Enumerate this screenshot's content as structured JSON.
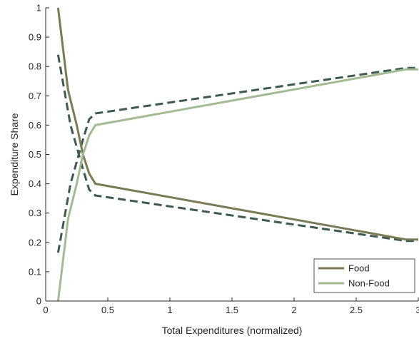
{
  "chart_data": {
    "type": "line",
    "xlabel": "Total Expenditures (normalized)",
    "ylabel": "Expenditure Share",
    "xlim": [
      0,
      3
    ],
    "ylim": [
      0,
      1
    ],
    "xticks": [
      0,
      0.5,
      1,
      1.5,
      2,
      2.5,
      3
    ],
    "xtick_labels": [
      "0",
      "0.5",
      "1",
      "1.5",
      "2",
      "2.5",
      "3"
    ],
    "yticks": [
      0,
      0.1,
      0.2,
      0.3,
      0.4,
      0.5,
      0.6,
      0.7,
      0.8,
      0.9,
      1
    ],
    "ytick_labels": [
      "0",
      "0.1",
      "0.2",
      "0.3",
      "0.4",
      "0.5",
      "0.6",
      "0.7",
      "0.8",
      "0.9",
      "1"
    ],
    "grid": false,
    "legend": {
      "placement": "bottom-right",
      "entries": [
        "Food",
        "Non-Food"
      ]
    },
    "series": [
      {
        "name": "Food",
        "color": "#7a7a55",
        "style": "solid",
        "x": [
          0.1,
          0.18,
          0.25,
          0.3,
          0.35,
          0.4,
          2.9,
          3.0
        ],
        "y": [
          1.0,
          0.72,
          0.6,
          0.5,
          0.435,
          0.4,
          0.21,
          0.21
        ]
      },
      {
        "name": "Non-Food",
        "color": "#a3bb93",
        "style": "solid",
        "x": [
          0.1,
          0.18,
          0.25,
          0.3,
          0.35,
          0.4,
          2.9,
          3.0
        ],
        "y": [
          0.0,
          0.28,
          0.4,
          0.5,
          0.565,
          0.6,
          0.79,
          0.79
        ]
      },
      {
        "color": "#3d5a4f",
        "style": "dashed",
        "x": [
          0.1,
          0.2,
          0.3,
          0.35,
          0.4,
          2.9,
          3.0
        ],
        "y": [
          0.84,
          0.6,
          0.45,
          0.38,
          0.36,
          0.205,
          0.205
        ]
      },
      {
        "color": "#3d5a4f",
        "style": "dashed",
        "x": [
          0.1,
          0.2,
          0.3,
          0.35,
          0.4,
          2.9,
          3.0
        ],
        "y": [
          0.165,
          0.4,
          0.55,
          0.62,
          0.64,
          0.795,
          0.795
        ]
      }
    ]
  }
}
